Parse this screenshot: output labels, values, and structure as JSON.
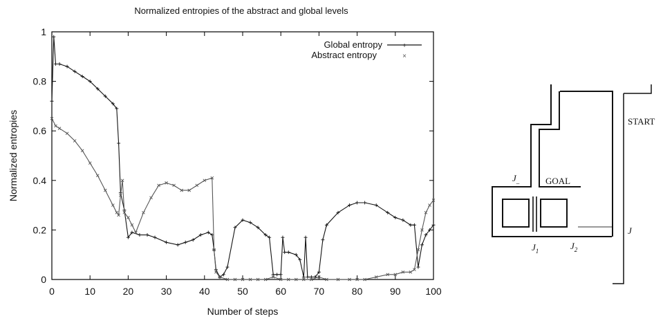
{
  "chart_data": {
    "type": "line",
    "title": "Normalized entropies of the abstract and global levels",
    "xlabel": "Number of steps",
    "ylabel": "Normalized entropies",
    "xlim": [
      0,
      100
    ],
    "ylim": [
      0,
      1
    ],
    "xticks": [
      "0",
      "10",
      "20",
      "30",
      "40",
      "50",
      "60",
      "70",
      "80",
      "90",
      "100"
    ],
    "yticks": [
      "0",
      "0.2",
      "0.4",
      "0.6",
      "0.8",
      "1"
    ],
    "grid": false,
    "legend_position": "top-right",
    "series": [
      {
        "name": "Global entropy",
        "marker": "+",
        "color": "#111111",
        "x": [
          0,
          0.5,
          1,
          2,
          4,
          6,
          8,
          10,
          12,
          14,
          16,
          17,
          17.5,
          18,
          19,
          20,
          21,
          23,
          25,
          27,
          30,
          33,
          35,
          37,
          39,
          41,
          42,
          42.5,
          43,
          44,
          45,
          46,
          48,
          50,
          52,
          54,
          56,
          57,
          58,
          59,
          60,
          60.5,
          61,
          62,
          64,
          65,
          66,
          66.5,
          67,
          68,
          69,
          70,
          71,
          72,
          75,
          78,
          80,
          82,
          85,
          88,
          90,
          92,
          94,
          95,
          96,
          97,
          98,
          99,
          100
        ],
        "y": [
          0.72,
          0.98,
          0.87,
          0.87,
          0.86,
          0.84,
          0.82,
          0.8,
          0.77,
          0.74,
          0.71,
          0.69,
          0.55,
          0.35,
          0.28,
          0.17,
          0.19,
          0.18,
          0.18,
          0.17,
          0.15,
          0.14,
          0.15,
          0.16,
          0.18,
          0.19,
          0.18,
          0.12,
          0.04,
          0.01,
          0.02,
          0.05,
          0.21,
          0.24,
          0.23,
          0.21,
          0.18,
          0.17,
          0.02,
          0.02,
          0.02,
          0.17,
          0.11,
          0.11,
          0.1,
          0.08,
          0.01,
          0.17,
          0.01,
          0.01,
          0.01,
          0.03,
          0.16,
          0.22,
          0.27,
          0.3,
          0.31,
          0.31,
          0.3,
          0.27,
          0.25,
          0.24,
          0.22,
          0.22,
          0.05,
          0.14,
          0.18,
          0.2,
          0.22
        ]
      },
      {
        "name": "Abstract entropy",
        "marker": "x",
        "color": "#555555",
        "x": [
          0,
          1,
          2,
          4,
          6,
          8,
          10,
          12,
          14,
          16,
          17,
          17.5,
          18,
          18.5,
          19,
          20,
          21,
          22,
          24,
          26,
          28,
          30,
          32,
          34,
          36,
          38,
          40,
          42,
          42.5,
          43,
          44,
          46,
          48,
          50,
          52,
          54,
          56,
          58,
          60,
          62,
          64,
          66,
          68,
          70,
          72,
          75,
          78,
          80,
          82,
          85,
          88,
          90,
          92,
          94,
          95,
          96,
          97,
          98,
          99,
          100
        ],
        "y": [
          0.65,
          0.62,
          0.61,
          0.59,
          0.56,
          0.52,
          0.47,
          0.42,
          0.36,
          0.3,
          0.27,
          0.26,
          0.34,
          0.4,
          0.27,
          0.25,
          0.22,
          0.19,
          0.27,
          0.33,
          0.38,
          0.39,
          0.38,
          0.36,
          0.36,
          0.38,
          0.4,
          0.41,
          0.12,
          0.03,
          0.01,
          0.0,
          0.0,
          0.0,
          0.0,
          0.0,
          0.0,
          0.01,
          0.0,
          0.0,
          0.0,
          0.0,
          0.0,
          0.01,
          0.0,
          0.0,
          0.0,
          0.0,
          0.0,
          0.01,
          0.02,
          0.02,
          0.03,
          0.03,
          0.04,
          0.12,
          0.2,
          0.27,
          0.3,
          0.32
        ]
      }
    ]
  },
  "diagram": {
    "label_start": "START",
    "label_goal": "GOAL",
    "label_j_top": "J",
    "label_j_top_sub": "_",
    "label_j1": "J",
    "label_j1_sub": "1",
    "label_j2": "J",
    "label_j2_sub": "2",
    "label_j_right": "J"
  }
}
